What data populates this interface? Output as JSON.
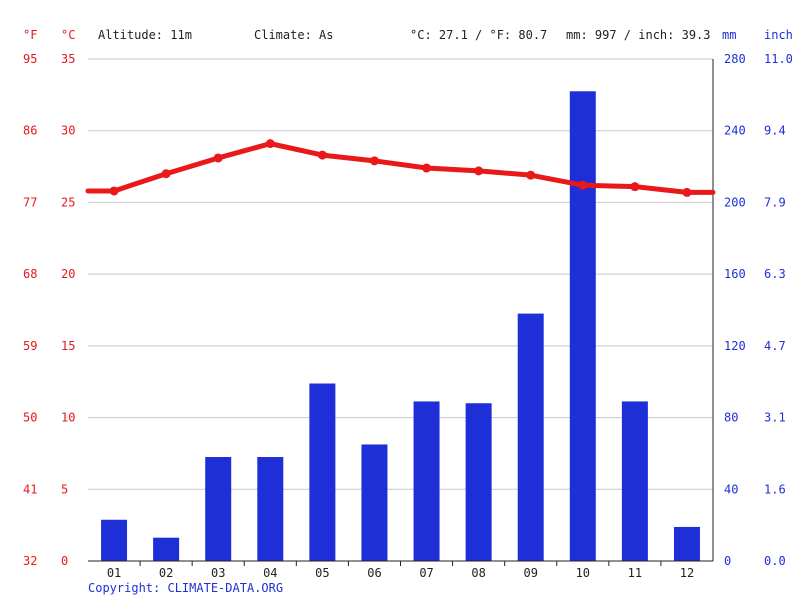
{
  "header": {
    "f_unit": "°F",
    "c_unit": "°C",
    "altitude": "Altitude: 11m",
    "climate": "Climate: As",
    "temp_avg": "°C: 27.1 / °F: 80.7",
    "precip_total": "mm: 997 / inch: 39.3",
    "mm_unit": "mm",
    "inch_unit": "inch"
  },
  "copyright": "Copyright: CLIMATE-DATA.ORG",
  "colors": {
    "temperature": "#e8181b",
    "precipitation": "#1f2fd8"
  },
  "chart_data": {
    "type": "bar",
    "categories": [
      "01",
      "02",
      "03",
      "04",
      "05",
      "06",
      "07",
      "08",
      "09",
      "10",
      "11",
      "12"
    ],
    "series": [
      {
        "type": "bar",
        "axis": "right",
        "values": [
          23,
          13,
          58,
          58,
          99,
          65,
          89,
          88,
          138,
          262,
          89,
          19
        ]
      },
      {
        "type": "line",
        "axis": "left",
        "values": [
          25.8,
          27.0,
          28.1,
          29.1,
          28.3,
          27.9,
          27.4,
          27.2,
          26.9,
          26.2,
          26.1,
          25.7
        ]
      }
    ],
    "left_axis": {
      "c_ticks": [
        0,
        5,
        10,
        15,
        20,
        25,
        30,
        35
      ],
      "f_ticks": [
        32,
        41,
        50,
        59,
        68,
        77,
        86,
        95
      ],
      "ylim": [
        0,
        35
      ]
    },
    "right_axis": {
      "mm_ticks": [
        0,
        40,
        80,
        120,
        160,
        200,
        240,
        280
      ],
      "inch_ticks": [
        "0.0",
        "1.6",
        "3.1",
        "4.7",
        "6.3",
        "7.9",
        "9.4",
        "11.0"
      ],
      "ylim": [
        0,
        280
      ]
    },
    "grid": true
  }
}
